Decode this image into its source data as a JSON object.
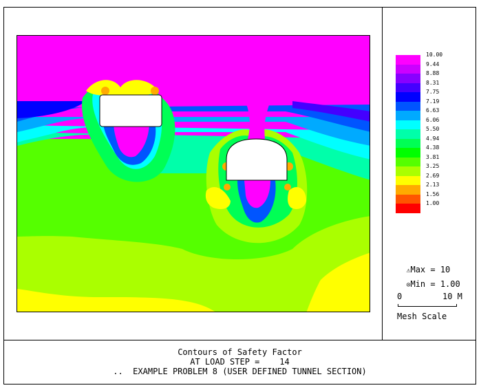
{
  "legend": {
    "levels": [
      {
        "value": "10.00",
        "color": "#ff00ff"
      },
      {
        "value": "9.44",
        "color": "#cc00ff"
      },
      {
        "value": "8.88",
        "color": "#8800ff"
      },
      {
        "value": "8.31",
        "color": "#4400ff"
      },
      {
        "value": "7.75",
        "color": "#0000ff"
      },
      {
        "value": "7.19",
        "color": "#0055ff"
      },
      {
        "value": "6.63",
        "color": "#00aaff"
      },
      {
        "value": "6.06",
        "color": "#00ffff"
      },
      {
        "value": "5.50",
        "color": "#00ffaa"
      },
      {
        "value": "4.94",
        "color": "#00ff55"
      },
      {
        "value": "4.38",
        "color": "#00ff00"
      },
      {
        "value": "3.81",
        "color": "#55ff00"
      },
      {
        "value": "3.25",
        "color": "#aaff00"
      },
      {
        "value": "2.69",
        "color": "#ffff00"
      },
      {
        "value": "2.13",
        "color": "#ffaa00"
      },
      {
        "value": "1.56",
        "color": "#ff5500"
      },
      {
        "value": "1.00",
        "color": "#ff0000"
      }
    ]
  },
  "stats": {
    "max_label": "Max = 10",
    "min_label": "Min = 1.00",
    "max_icon": "triangle-icon",
    "min_icon": "circle-icon"
  },
  "scale": {
    "left_label": "0",
    "right_label": "10 M",
    "caption": "Mesh Scale"
  },
  "title": {
    "line1": "Contours of Safety Factor",
    "line2": "AT LOAD STEP =    14",
    "line3": "..  EXAMPLE PROBLEM 8 (USER DEFINED TUNNEL SECTION)"
  }
}
